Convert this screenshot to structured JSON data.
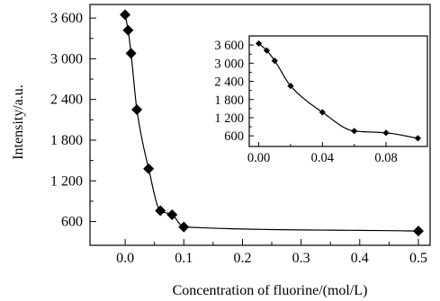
{
  "chart_data": [
    {
      "type": "scatter",
      "title": "",
      "xlabel": "Concentration of fluorine/(mol/L)",
      "ylabel": "Intensity/a.u.",
      "xlim": [
        -0.06,
        0.52
      ],
      "ylim": [
        250,
        3800
      ],
      "x_ticks": [
        0.0,
        0.1,
        0.2,
        0.3,
        0.4,
        0.5
      ],
      "x_tick_labels": [
        "0.0",
        "0.1",
        "0.2",
        "0.3",
        "0.4",
        "0.5"
      ],
      "y_ticks": [
        600,
        1200,
        1800,
        2400,
        3000,
        3600
      ],
      "y_tick_labels": [
        "600",
        "1 200",
        "1 800",
        "2 400",
        "3 000",
        "3 600"
      ],
      "grid": false,
      "legend": "none",
      "marker": "diamond",
      "fit_curve": true,
      "series": [
        {
          "x": [
            0.0,
            0.005,
            0.01,
            0.02,
            0.04,
            0.06,
            0.08,
            0.1,
            0.5
          ],
          "y": [
            3650,
            3420,
            3080,
            2250,
            1380,
            760,
            700,
            520,
            460
          ]
        }
      ]
    },
    {
      "type": "scatter",
      "title": "",
      "xlabel": "",
      "ylabel": "",
      "xlim": [
        -0.006,
        0.106
      ],
      "ylim": [
        250,
        3900
      ],
      "x_ticks": [
        0.0,
        0.04,
        0.08
      ],
      "x_tick_labels": [
        "0.00",
        "0.04",
        "0.08"
      ],
      "y_ticks": [
        600,
        1200,
        1800,
        2400,
        3000,
        3600
      ],
      "y_tick_labels": [
        "600",
        "1 200",
        "1 800",
        "2 400",
        "3 000",
        "3 600"
      ],
      "grid": false,
      "legend": "none",
      "marker": "diamond",
      "fit_curve": true,
      "series": [
        {
          "x": [
            0.0,
            0.005,
            0.01,
            0.02,
            0.04,
            0.06,
            0.08,
            0.1
          ],
          "y": [
            3650,
            3420,
            3080,
            2250,
            1380,
            760,
            700,
            520
          ]
        }
      ]
    }
  ]
}
